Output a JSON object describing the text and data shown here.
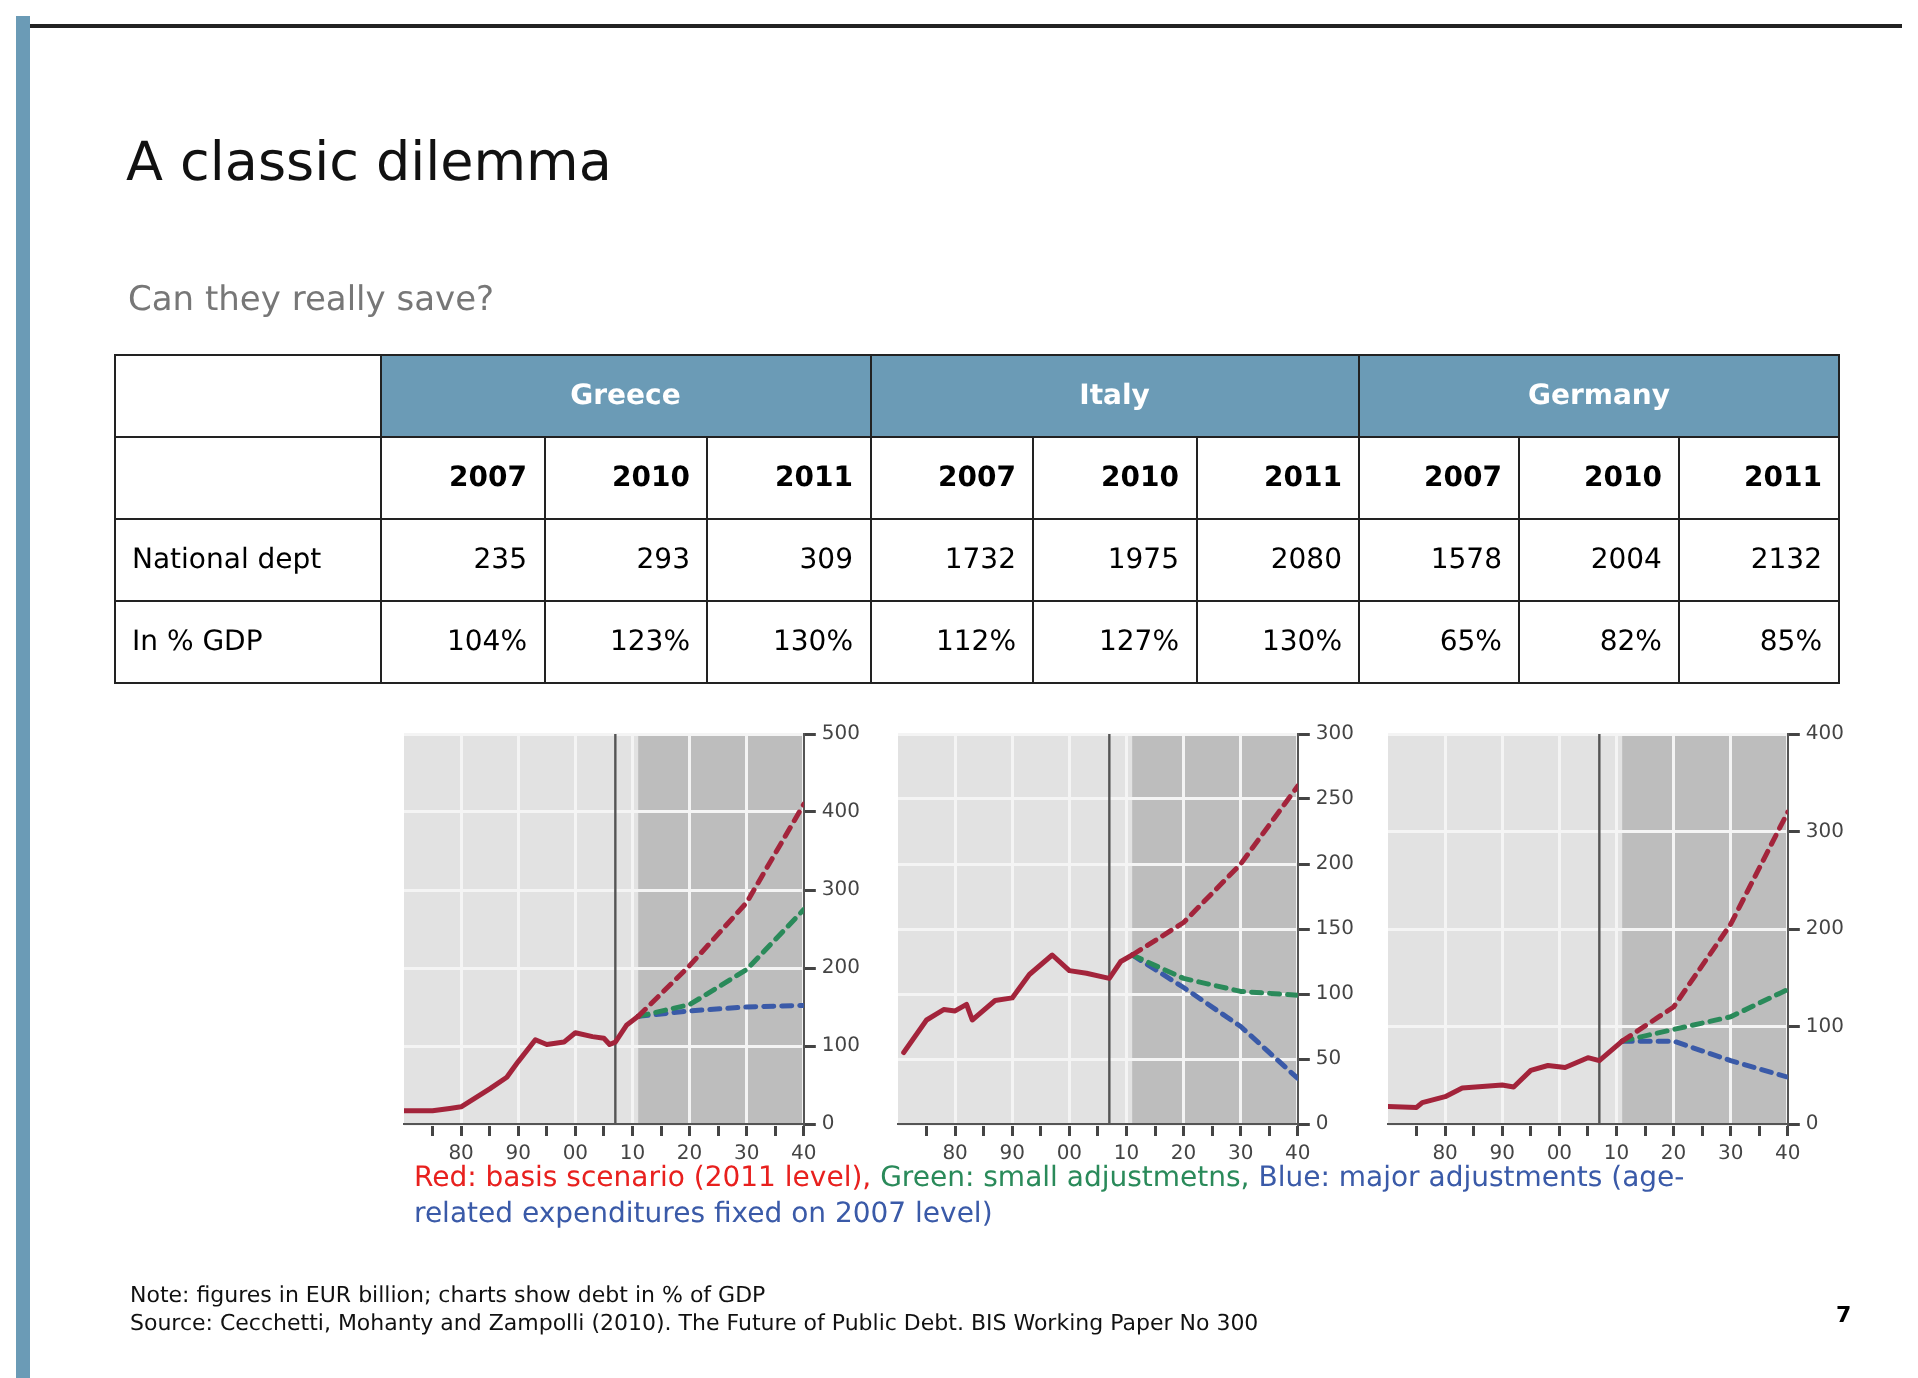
{
  "chart_data": [
    {
      "type": "other",
      "title": "A classic dilemma",
      "subtitle": "Can they really save?",
      "annotations": [
        "Greece",
        "Italy",
        "Germany"
      ],
      "categories": [
        "2007",
        "2010",
        "2011",
        "2007",
        "2010",
        "2011",
        "2007",
        "2010",
        "2011"
      ],
      "y_categories": [
        "National dept",
        "In % GDP"
      ],
      "cell_labels": [
        [
          "235",
          "293",
          "309",
          "1732",
          "1975",
          "2080",
          "1578",
          "2004",
          "2132"
        ],
        [
          "104%",
          "123%",
          "130%",
          "112%",
          "127%",
          "130%",
          "65%",
          "82%",
          "85%"
        ]
      ]
    },
    {
      "type": "line",
      "xlim": [
        1970,
        2040
      ],
      "ylim": [
        0,
        500
      ],
      "xticks": [
        {
          "value": 1975,
          "label": null
        },
        {
          "value": 1980,
          "label": "80"
        },
        {
          "value": 1985,
          "label": null
        },
        {
          "value": 1990,
          "label": "90"
        },
        {
          "value": 1995,
          "label": null
        },
        {
          "value": 2000,
          "label": "00"
        },
        {
          "value": 2005,
          "label": null
        },
        {
          "value": 2010,
          "label": "10"
        },
        {
          "value": 2015,
          "label": null
        },
        {
          "value": 2020,
          "label": "20"
        },
        {
          "value": 2025,
          "label": null
        },
        {
          "value": 2030,
          "label": "30"
        },
        {
          "value": 2035,
          "label": null
        },
        {
          "value": 2040,
          "label": "40"
        }
      ],
      "yticks": [
        0,
        100,
        200,
        300,
        400,
        500
      ],
      "grid": true,
      "legend": false,
      "marker": "none",
      "ref_lines": [
        {
          "axis": "x",
          "value": 2007,
          "color": "#555555"
        }
      ],
      "bands": [
        {
          "axis": "x",
          "from": 2011,
          "to": 2040,
          "color": "#bdbdbd"
        }
      ],
      "series": [
        {
          "color": "#a3243b",
          "line_style": "solid",
          "x": [
            1970,
            1975,
            1978,
            1980,
            1985,
            1988,
            1990,
            1993,
            1995,
            1998,
            2000,
            2003,
            2005,
            2006,
            2007,
            2009,
            2011
          ],
          "values": [
            17,
            17,
            20,
            22,
            45,
            60,
            80,
            108,
            102,
            105,
            117,
            112,
            110,
            102,
            105,
            127,
            138
          ]
        },
        {
          "color": "#a3243b",
          "line_style": "dashed",
          "x": [
            2011,
            2020,
            2030,
            2040
          ],
          "values": [
            138,
            203,
            284,
            410
          ]
        },
        {
          "color": "#2a8a5a",
          "line_style": "dashed",
          "x": [
            2011,
            2020,
            2030,
            2040
          ],
          "values": [
            138,
            153,
            198,
            275
          ]
        },
        {
          "color": "#3a5aa8",
          "line_style": "dashed",
          "x": [
            2011,
            2020,
            2030,
            2040
          ],
          "values": [
            138,
            145,
            150,
            152
          ]
        }
      ]
    },
    {
      "type": "line",
      "xlim": [
        1970,
        2040
      ],
      "ylim": [
        0,
        300
      ],
      "xticks": [
        {
          "value": 1975,
          "label": null
        },
        {
          "value": 1980,
          "label": "80"
        },
        {
          "value": 1985,
          "label": null
        },
        {
          "value": 1990,
          "label": "90"
        },
        {
          "value": 1995,
          "label": null
        },
        {
          "value": 2000,
          "label": "00"
        },
        {
          "value": 2005,
          "label": null
        },
        {
          "value": 2010,
          "label": "10"
        },
        {
          "value": 2015,
          "label": null
        },
        {
          "value": 2020,
          "label": "20"
        },
        {
          "value": 2025,
          "label": null
        },
        {
          "value": 2030,
          "label": "30"
        },
        {
          "value": 2035,
          "label": null
        },
        {
          "value": 2040,
          "label": "40"
        }
      ],
      "yticks": [
        0,
        50,
        100,
        150,
        200,
        250,
        300
      ],
      "grid": true,
      "legend": false,
      "marker": "none",
      "ref_lines": [
        {
          "axis": "x",
          "value": 2007,
          "color": "#555555"
        }
      ],
      "bands": [
        {
          "axis": "x",
          "from": 2011,
          "to": 2040,
          "color": "#bdbdbd"
        }
      ],
      "series": [
        {
          "color": "#a3243b",
          "line_style": "solid",
          "x": [
            1971,
            1975,
            1978,
            1980,
            1982,
            1983,
            1987,
            1990,
            1993,
            1997,
            2000,
            2003,
            2006,
            2007,
            2009,
            2011
          ],
          "values": [
            55,
            80,
            88,
            87,
            92,
            80,
            95,
            97,
            115,
            130,
            118,
            116,
            113,
            112,
            125,
            130
          ]
        },
        {
          "color": "#a3243b",
          "line_style": "dashed",
          "x": [
            2011,
            2020,
            2030,
            2040
          ],
          "values": [
            130,
            155,
            200,
            260
          ]
        },
        {
          "color": "#2a8a5a",
          "line_style": "dashed",
          "x": [
            2011,
            2020,
            2030,
            2040
          ],
          "values": [
            130,
            112,
            102,
            99
          ]
        },
        {
          "color": "#3a5aa8",
          "line_style": "dashed",
          "x": [
            2011,
            2020,
            2030,
            2040
          ],
          "values": [
            130,
            105,
            75,
            35
          ]
        }
      ]
    },
    {
      "type": "line",
      "xlim": [
        1970,
        2040
      ],
      "ylim": [
        0,
        400
      ],
      "xticks": [
        {
          "value": 1975,
          "label": null
        },
        {
          "value": 1980,
          "label": "80"
        },
        {
          "value": 1985,
          "label": null
        },
        {
          "value": 1990,
          "label": "90"
        },
        {
          "value": 1995,
          "label": null
        },
        {
          "value": 2000,
          "label": "00"
        },
        {
          "value": 2005,
          "label": null
        },
        {
          "value": 2010,
          "label": "10"
        },
        {
          "value": 2015,
          "label": null
        },
        {
          "value": 2020,
          "label": "20"
        },
        {
          "value": 2025,
          "label": null
        },
        {
          "value": 2030,
          "label": "30"
        },
        {
          "value": 2035,
          "label": null
        },
        {
          "value": 2040,
          "label": "40"
        }
      ],
      "yticks": [
        0,
        100,
        200,
        300,
        400
      ],
      "grid": true,
      "legend": false,
      "marker": "none",
      "ref_lines": [
        {
          "axis": "x",
          "value": 2007,
          "color": "#555555"
        }
      ],
      "bands": [
        {
          "axis": "x",
          "from": 2011,
          "to": 2040,
          "color": "#bdbdbd"
        }
      ],
      "annotations": [
        "Red: basis scenario (2011 level),",
        "Green: small adjustmetns,",
        "Blue: major adjustments (age-related expenditures fixed on 2007 level)",
        "Note: figures in EUR billion; charts show debt in % of GDP",
        "Source: Cecchetti, Mohanty and Zampolli (2010). The Future of Public Debt. BIS Working Paper No 300",
        "7"
      ],
      "series": [
        {
          "color": "#a3243b",
          "line_style": "solid",
          "x": [
            1970,
            1975,
            1976,
            1980,
            1983,
            1990,
            1992,
            1995,
            1998,
            2001,
            2005,
            2007,
            2009,
            2011
          ],
          "values": [
            18,
            17,
            22,
            28,
            37,
            40,
            38,
            55,
            60,
            58,
            68,
            65,
            75,
            85
          ]
        },
        {
          "color": "#a3243b",
          "line_style": "dashed",
          "x": [
            2011,
            2020,
            2030,
            2040
          ],
          "values": [
            85,
            120,
            205,
            320
          ]
        },
        {
          "color": "#2a8a5a",
          "line_style": "dashed",
          "x": [
            2011,
            2020,
            2030,
            2040
          ],
          "values": [
            85,
            97,
            110,
            138
          ]
        },
        {
          "color": "#3a5aa8",
          "line_style": "dashed",
          "x": [
            2011,
            2020,
            2030,
            2040
          ],
          "values": [
            85,
            85,
            65,
            48
          ]
        }
      ]
    }
  ]
}
